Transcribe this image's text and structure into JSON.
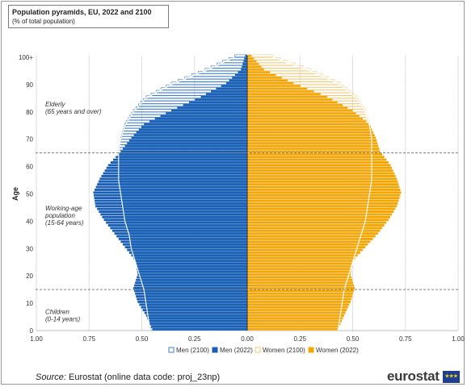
{
  "chart_data": {
    "type": "bar",
    "orientation": "horizontal",
    "title": "Population pyramids, EU, 2022 and 2100",
    "subtitle": "(% of total population)",
    "ylabel": "Age",
    "xlabel": "",
    "xlim": [
      -1.0,
      1.0
    ],
    "ylim": [
      0,
      100
    ],
    "x_tick_labels": [
      "1.00",
      "0.75",
      "0.50",
      "0.25",
      "0.00",
      "0.25",
      "0.50",
      "0.75",
      "1.00"
    ],
    "y_tick_labels": [
      "0",
      "10",
      "20",
      "30",
      "40",
      "50",
      "60",
      "70",
      "80",
      "90",
      "100+"
    ],
    "grid": "vertical",
    "reference_lines": [
      15,
      65
    ],
    "legend_position": "bottom",
    "annotations": [
      {
        "lines": [
          "Elderly",
          "(65 years and over)"
        ],
        "age": 82
      },
      {
        "lines": [
          "Working-age",
          "population",
          "(15-64 years)"
        ],
        "age": 44
      },
      {
        "lines": [
          "Children",
          "(0-14 years)"
        ],
        "age": 6
      }
    ],
    "age_knots": [
      0,
      5,
      10,
      15,
      20,
      25,
      30,
      35,
      40,
      45,
      50,
      55,
      60,
      65,
      70,
      75,
      80,
      85,
      90,
      95,
      100
    ],
    "series": [
      {
        "name": "Men (2100)",
        "side": "left",
        "style": "outline",
        "values": [
          0.46,
          0.47,
          0.48,
          0.49,
          0.51,
          0.53,
          0.55,
          0.56,
          0.58,
          0.59,
          0.6,
          0.61,
          0.61,
          0.61,
          0.6,
          0.58,
          0.54,
          0.48,
          0.36,
          0.2,
          0.06
        ]
      },
      {
        "name": "Men (2022)",
        "side": "left",
        "style": "filled",
        "values": [
          0.45,
          0.48,
          0.52,
          0.54,
          0.52,
          0.53,
          0.58,
          0.63,
          0.68,
          0.72,
          0.73,
          0.7,
          0.66,
          0.6,
          0.55,
          0.49,
          0.36,
          0.22,
          0.1,
          0.03,
          0.01
        ]
      },
      {
        "name": "Women (2100)",
        "side": "right",
        "style": "outline",
        "values": [
          0.43,
          0.44,
          0.45,
          0.46,
          0.48,
          0.5,
          0.52,
          0.54,
          0.56,
          0.57,
          0.58,
          0.59,
          0.59,
          0.59,
          0.59,
          0.58,
          0.56,
          0.52,
          0.44,
          0.3,
          0.12
        ]
      },
      {
        "name": "Women (2022)",
        "side": "right",
        "style": "filled",
        "values": [
          0.43,
          0.46,
          0.49,
          0.51,
          0.49,
          0.5,
          0.56,
          0.62,
          0.67,
          0.71,
          0.73,
          0.71,
          0.68,
          0.63,
          0.61,
          0.58,
          0.5,
          0.38,
          0.22,
          0.08,
          0.02
        ]
      }
    ]
  },
  "colors": {
    "men_2022": "#1a5fb4",
    "men_2100_outline": "#3d7ec4",
    "women_2022": "#f5a500",
    "women_2100_outline": "#f2c874",
    "grid": "#d9d9d9",
    "reference_line": "#808080",
    "inner_line": "#ffffff"
  },
  "source": {
    "label": "Source:",
    "text": "Eurostat (online data code: proj_23np)"
  },
  "logo": {
    "text": "eurostat",
    "icon": "eu-flag-icon"
  }
}
